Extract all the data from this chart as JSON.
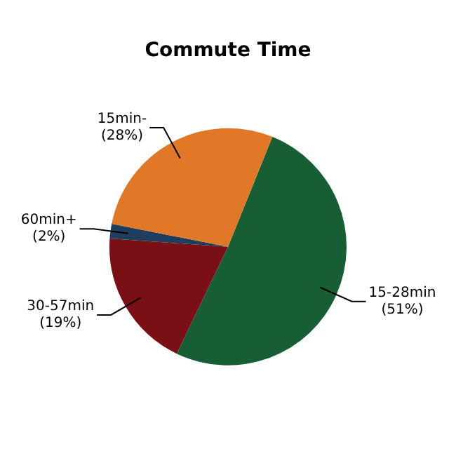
{
  "chart_data": {
    "type": "pie",
    "title": "Commute Time",
    "categories": [
      "15-28min",
      "30-57min",
      "60min+",
      "15min-"
    ],
    "values": [
      51,
      19,
      2,
      28
    ],
    "colors": [
      "#175e35",
      "#7a1015",
      "#1f3d5c",
      "#e07828"
    ],
    "value_labels": [
      "(51%)",
      "(19%)",
      "(2%)",
      "(28%)"
    ],
    "legend": false
  }
}
